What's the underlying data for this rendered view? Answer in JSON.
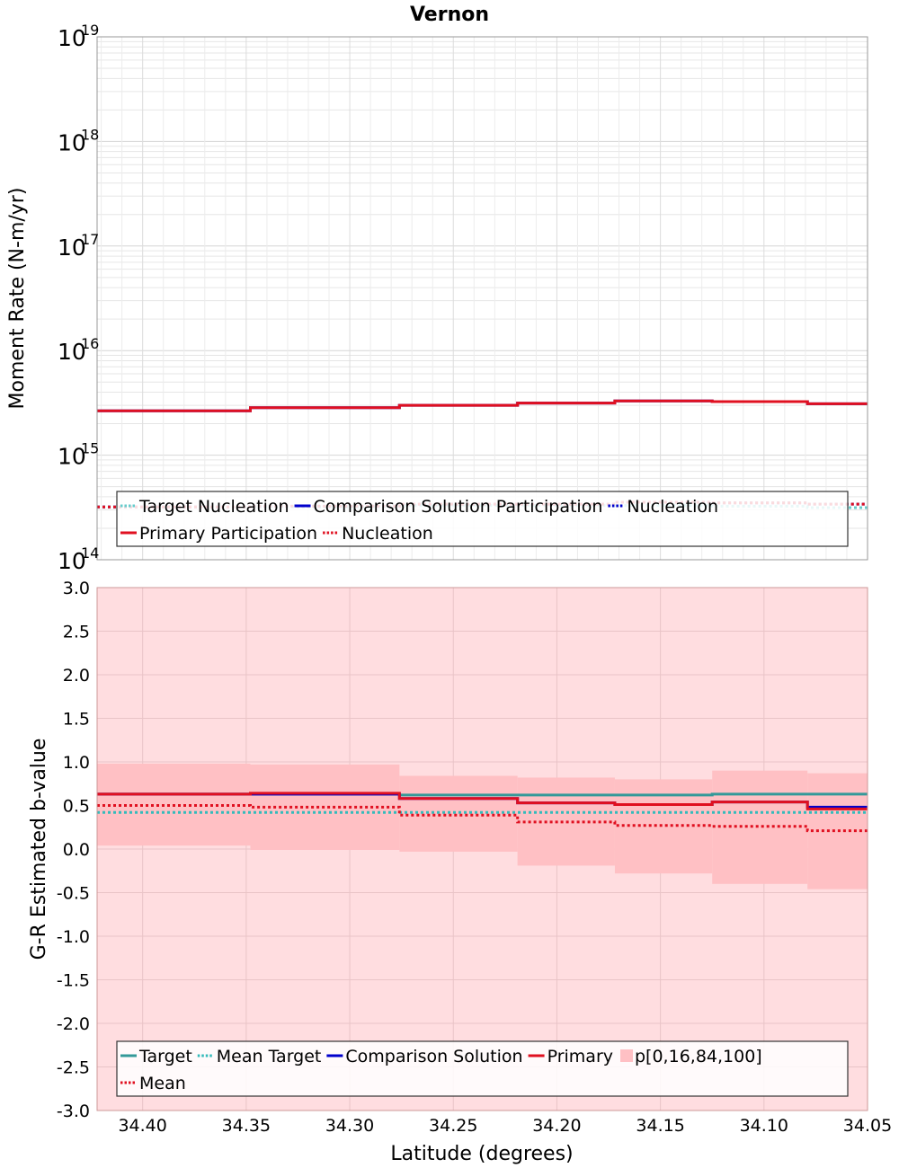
{
  "title": "Vernon",
  "x_axis": {
    "label": "Latitude (degrees)",
    "range": [
      34.422,
      34.05
    ],
    "ticks": [
      "34.40",
      "34.35",
      "34.30",
      "34.25",
      "34.20",
      "34.15",
      "34.10",
      "34.05"
    ],
    "tick_values": [
      34.4,
      34.35,
      34.3,
      34.25,
      34.2,
      34.15,
      34.1,
      34.05
    ]
  },
  "chart_data": [
    {
      "type": "line",
      "subtype": "step",
      "ylabel": "Moment Rate (N-m/yr)",
      "yscale": "log",
      "ylim": [
        100000000000000.0,
        1e+19
      ],
      "yticks": [
        {
          "base": "10",
          "exp": "14",
          "value": 100000000000000.0
        },
        {
          "base": "10",
          "exp": "15",
          "value": 1000000000000000.0
        },
        {
          "base": "10",
          "exp": "16",
          "value": 1e+16
        },
        {
          "base": "10",
          "exp": "17",
          "value": 1e+17
        },
        {
          "base": "10",
          "exp": "18",
          "value": 1e+18
        },
        {
          "base": "10",
          "exp": "19",
          "value": 1e+19
        }
      ],
      "grid": true,
      "bin_edges": [
        34.422,
        34.348,
        34.276,
        34.219,
        34.172,
        34.125,
        34.079,
        34.05
      ],
      "series": [
        {
          "name": "Target Nucleation",
          "style": "dotted",
          "color": "#66cccc",
          "values": [
            320000000000000.0,
            320000000000000.0,
            330000000000000.0,
            330000000000000.0,
            330000000000000.0,
            325000000000000.0,
            315000000000000.0
          ]
        },
        {
          "name": "Comparison Solution Participation",
          "style": "solid",
          "color": "#0000cc",
          "values": [
            2650000000000000.0,
            2850000000000000.0,
            3000000000000000.0,
            3150000000000000.0,
            3300000000000000.0,
            3250000000000000.0,
            3100000000000000.0
          ]
        },
        {
          "name": "Nucleation",
          "style": "dotted",
          "color": "#0000cc",
          "values": [
            320000000000000.0,
            325000000000000.0,
            340000000000000.0,
            340000000000000.0,
            355000000000000.0,
            350000000000000.0,
            340000000000000.0
          ]
        },
        {
          "name": "Primary Participation",
          "style": "solid",
          "color": "#e01020",
          "values": [
            2650000000000000.0,
            2850000000000000.0,
            3000000000000000.0,
            3150000000000000.0,
            3300000000000000.0,
            3250000000000000.0,
            3100000000000000.0
          ]
        },
        {
          "name": "Nucleation",
          "style": "dotted",
          "color": "#e01020",
          "values": [
            320000000000000.0,
            325000000000000.0,
            340000000000000.0,
            340000000000000.0,
            355000000000000.0,
            350000000000000.0,
            340000000000000.0
          ]
        }
      ],
      "legend": {
        "placement": "bottom",
        "rows": [
          [
            {
              "label": "Target Nucleation",
              "series": 0
            },
            {
              "label": "Comparison Solution Participation",
              "series": 1
            },
            {
              "label": "Nucleation",
              "series": 2
            }
          ],
          [
            {
              "label": "Primary Participation",
              "series": 3
            },
            {
              "label": "Nucleation",
              "series": 4
            }
          ]
        ]
      }
    },
    {
      "type": "line",
      "subtype": "step",
      "ylabel": "G-R Estimated b-value",
      "ylim": [
        -3.0,
        3.0
      ],
      "yticks": [
        "3.0",
        "2.5",
        "2.0",
        "1.5",
        "1.0",
        "0.5",
        "0.0",
        "-0.5",
        "-1.0",
        "-1.5",
        "-2.0",
        "-2.5",
        "-3.0"
      ],
      "ytick_values": [
        3.0,
        2.5,
        2.0,
        1.5,
        1.0,
        0.5,
        0.0,
        -0.5,
        -1.0,
        -1.5,
        -2.0,
        -2.5,
        -3.0
      ],
      "grid": true,
      "bin_edges": [
        34.422,
        34.348,
        34.276,
        34.219,
        34.172,
        34.125,
        34.079,
        34.05
      ],
      "bands": [
        {
          "name": "p[0,100]",
          "color": "#ffdde0",
          "low": [
            -3.0,
            -3.0,
            -3.0,
            -3.0,
            -3.0,
            -3.0,
            -3.0
          ],
          "high": [
            3.0,
            3.0,
            3.0,
            3.0,
            3.0,
            3.0,
            3.0
          ]
        },
        {
          "name": "p[16,84]",
          "color": "#ffc0c4",
          "low": [
            0.04,
            -0.01,
            -0.03,
            -0.19,
            -0.28,
            -0.4,
            -0.46
          ],
          "high": [
            0.98,
            0.97,
            0.84,
            0.82,
            0.8,
            0.9,
            0.87
          ]
        }
      ],
      "series": [
        {
          "name": "Target",
          "style": "solid",
          "color": "#339999",
          "values": [
            0.63,
            0.63,
            0.62,
            0.62,
            0.62,
            0.63,
            0.63
          ]
        },
        {
          "name": "Mean Target",
          "style": "dotted",
          "color": "#33bbbb",
          "values": [
            0.42,
            0.42,
            0.42,
            0.42,
            0.42,
            0.42,
            0.42
          ]
        },
        {
          "name": "Comparison Solution",
          "style": "solid",
          "color": "#0000cc",
          "values": [
            0.63,
            0.63,
            0.58,
            0.53,
            0.51,
            0.54,
            0.48
          ]
        },
        {
          "name": "Primary",
          "style": "solid",
          "color": "#e01020",
          "values": [
            0.63,
            0.64,
            0.58,
            0.53,
            0.51,
            0.54,
            0.46
          ]
        },
        {
          "name": "Mean",
          "style": "dotted",
          "color": "#e01020",
          "values": [
            0.5,
            0.48,
            0.39,
            0.31,
            0.27,
            0.26,
            0.21
          ]
        }
      ],
      "legend": {
        "placement": "bottom",
        "rows": [
          [
            {
              "label": "Target",
              "series": 0
            },
            {
              "label": "Mean Target",
              "series": 1
            },
            {
              "label": "Comparison Solution",
              "series": 2
            },
            {
              "label": "Primary",
              "series": 3
            },
            {
              "label": "p[0,16,84,100]",
              "band": true
            }
          ],
          [
            {
              "label": "Mean",
              "series": 4
            }
          ]
        ]
      }
    }
  ]
}
